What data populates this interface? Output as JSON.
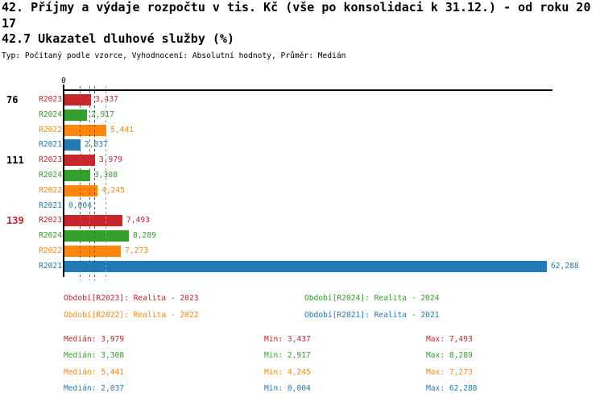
{
  "header": {
    "title_line1": "42. Příjmy a výdaje rozpočtu v tis. Kč (vše po konsolidaci k 31.12.) - od roku 20",
    "title_line2": "17",
    "subtitle": "42.7 Ukazatel dluhové služby (%)",
    "meta": "Typ: Počítaný podle vzorce, Vyhodnocení: Absolutní hodnoty, Průměr: Medián"
  },
  "colors": {
    "red": "#c9252c",
    "green": "#33a02c",
    "orange": "#ff860d",
    "blue": "#2279b5",
    "axis": "#000000"
  },
  "chart_data": {
    "type": "bar",
    "orientation": "horizontal",
    "title": "42.7 Ukazatel dluhové služby (%)",
    "axis": {
      "zero_label": "0",
      "min": 0,
      "max": 62.288
    },
    "grid": false,
    "series": [
      {
        "id": "R2023",
        "name": "Realita - 2023",
        "color": "#c9252c",
        "median": 3.979,
        "median_label": "3,979",
        "min": 3.437,
        "min_label": "3,437",
        "max": 7.493,
        "max_label": "7,493"
      },
      {
        "id": "R2024",
        "name": "Realita - 2024",
        "color": "#33a02c",
        "median": 3.308,
        "median_label": "3,308",
        "min": 2.917,
        "min_label": "2,917",
        "max": 8.289,
        "max_label": "8,289"
      },
      {
        "id": "R2022",
        "name": "Realita - 2022",
        "color": "#ff860d",
        "median": 5.441,
        "median_label": "5,441",
        "min": 4.245,
        "min_label": "4,245",
        "max": 7.273,
        "max_label": "7,273"
      },
      {
        "id": "R2021",
        "name": "Realita - 2021",
        "color": "#2279b5",
        "median": 2.037,
        "median_label": "2,037",
        "min": 0.004,
        "min_label": "0,004",
        "max": 62.288,
        "max_label": "62,288"
      }
    ],
    "groups": [
      {
        "label": "76",
        "label_color": "#000000",
        "bars": [
          {
            "series": "R2023",
            "value": 3.437,
            "label": "3,437"
          },
          {
            "series": "R2024",
            "value": 2.917,
            "label": "2,917"
          },
          {
            "series": "R2022",
            "value": 5.441,
            "label": "5,441"
          },
          {
            "series": "R2021",
            "value": 2.037,
            "label": "2,037"
          }
        ]
      },
      {
        "label": "111",
        "label_color": "#000000",
        "bars": [
          {
            "series": "R2023",
            "value": 3.979,
            "label": "3,979"
          },
          {
            "series": "R2024",
            "value": 3.308,
            "label": "3,308"
          },
          {
            "series": "R2022",
            "value": 4.245,
            "label": "4,245"
          },
          {
            "series": "R2021",
            "value": 0.004,
            "label": "0,004"
          }
        ]
      },
      {
        "label": "139",
        "label_color": "#c9252c",
        "bars": [
          {
            "series": "R2023",
            "value": 7.493,
            "label": "7,493"
          },
          {
            "series": "R2024",
            "value": 8.289,
            "label": "8,289"
          },
          {
            "series": "R2022",
            "value": 7.273,
            "label": "7,273"
          },
          {
            "series": "R2021",
            "value": 62.288,
            "label": "62,288"
          }
        ]
      }
    ]
  },
  "legend": {
    "items": [
      {
        "label": "Období[R2023]: Realita - 2023",
        "color": "#c9252c"
      },
      {
        "label": "Období[R2024]: Realita - 2024",
        "color": "#33a02c"
      },
      {
        "label": "Období[R2022]: Realita - 2022",
        "color": "#ff860d"
      },
      {
        "label": "Období[R2021]: Realita - 2021",
        "color": "#2279b5"
      }
    ]
  },
  "stats": {
    "rows": [
      {
        "color": "#c9252c",
        "median": "Medián: 3,979",
        "min": "Min: 3,437",
        "max": "Max: 7,493"
      },
      {
        "color": "#33a02c",
        "median": "Medián: 3,308",
        "min": "Min: 2,917",
        "max": "Max: 8,289"
      },
      {
        "color": "#ff860d",
        "median": "Medián: 5,441",
        "min": "Min: 4,245",
        "max": "Max: 7,273"
      },
      {
        "color": "#2279b5",
        "median": "Medián: 2,037",
        "min": "Min: 0,004",
        "max": "Max: 62,288"
      }
    ]
  }
}
